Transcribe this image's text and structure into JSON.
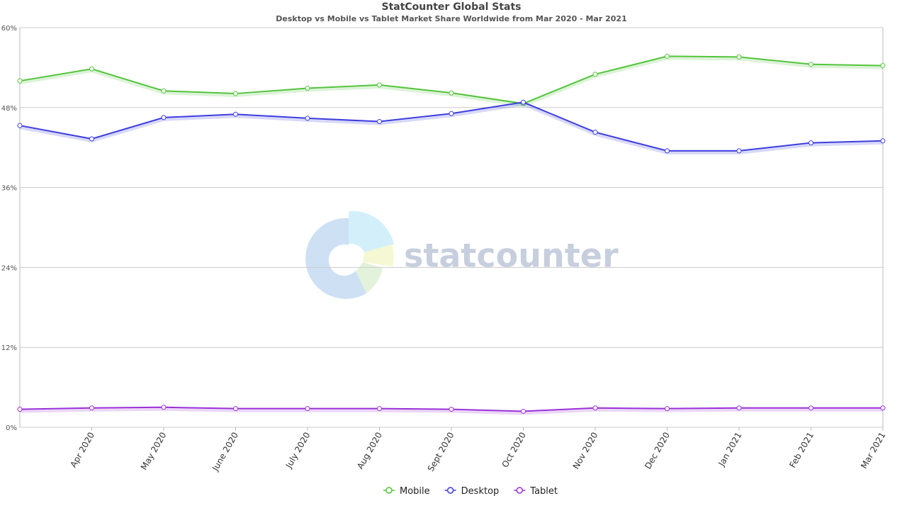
{
  "chart_data": {
    "type": "line",
    "title": "StatCounter Global Stats",
    "subtitle": "Desktop vs Mobile vs Tablet Market Share Worldwide from Mar 2020 - Mar 2021",
    "watermark": "statcounter",
    "categories": [
      null,
      "Apr 2020",
      "May 2020",
      "June 2020",
      "July 2020",
      "Aug 2020",
      "Sept 2020",
      "Oct 2020",
      "Nov 2020",
      "Dec 2020",
      "Jan 2021",
      "Feb 2021",
      "Mar 2021"
    ],
    "series": [
      {
        "name": "Mobile",
        "color": "#52c43a",
        "values": [
          52.0,
          53.8,
          50.5,
          50.1,
          50.9,
          51.4,
          50.2,
          48.6,
          53.0,
          55.7,
          55.6,
          54.5,
          54.3
        ]
      },
      {
        "name": "Desktop",
        "color": "#3d3ddf",
        "values": [
          45.3,
          43.3,
          46.5,
          47.0,
          46.4,
          45.9,
          47.1,
          48.8,
          44.3,
          41.5,
          41.5,
          42.7,
          43.0
        ]
      },
      {
        "name": "Tablet",
        "color": "#9b30d9",
        "values": [
          2.7,
          2.9,
          3.0,
          2.8,
          2.8,
          2.8,
          2.7,
          2.4,
          2.9,
          2.8,
          2.9,
          2.9,
          2.9
        ]
      }
    ],
    "ylim": [
      0,
      60
    ],
    "yticks": [
      {
        "value": 0,
        "label": "0%"
      },
      {
        "value": 12,
        "label": "12%"
      },
      {
        "value": 24,
        "label": "24%"
      },
      {
        "value": 36,
        "label": "36%"
      },
      {
        "value": 48,
        "label": "48%"
      },
      {
        "value": 60,
        "label": "60%"
      }
    ],
    "grid": true,
    "legend": "bottom"
  }
}
